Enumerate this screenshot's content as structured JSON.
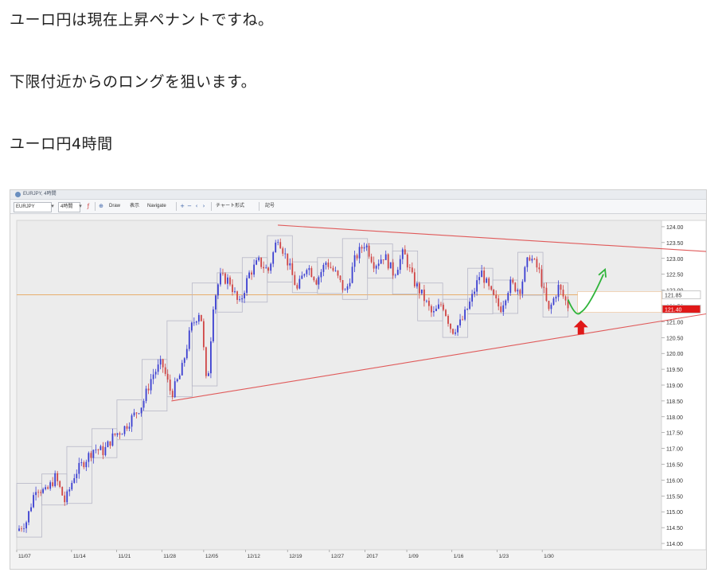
{
  "text": {
    "line1": "ユーロ円は現在上昇ペナントですね。",
    "line2": "下限付近からのロングを狙います。",
    "line3": "ユーロ円4時間"
  },
  "window": {
    "title": "EURJPY, 4時間"
  },
  "toolbar": {
    "symbol": "EURJPY",
    "timeframe": "4時間",
    "draw": "Draw",
    "display": "表示",
    "navigate": "Navigate",
    "chart_type": "チャート形式",
    "indicator": "記号"
  },
  "colors": {
    "bull": "#3b3fd1",
    "bear": "#d04545",
    "trendline": "#e05a5a",
    "box": "#b7b7c7",
    "hline": "#e8a55a",
    "arrow_green": "#2fb43a",
    "arrow_red": "#e01818",
    "price_tag_white": "#ffffff",
    "price_tag_red": "#e01818"
  },
  "chart_data": {
    "type": "candlestick",
    "symbol": "EURJPY",
    "timeframe": "4H",
    "x_ticks": [
      "11/07",
      "11/14",
      "11/21",
      "11/28",
      "12/05",
      "12/12",
      "12/19",
      "12/27",
      "2017",
      "1/09",
      "1/16",
      "1/23",
      "1/30"
    ],
    "y_ticks": [
      124.0,
      123.5,
      123.0,
      122.5,
      122.0,
      121.5,
      121.0,
      120.5,
      120.0,
      119.5,
      119.0,
      118.5,
      118.0,
      117.5,
      117.0,
      116.5,
      116.0,
      115.5,
      115.0,
      114.5,
      114.0
    ],
    "ylim": [
      113.8,
      124.2
    ],
    "price_tags": [
      {
        "label": "121.85",
        "value": 121.85
      },
      {
        "label": "121.40",
        "value": 121.4
      }
    ],
    "trendlines": {
      "upper": [
        [
          0.405,
          124.05
        ],
        [
          1.125,
          123.15
        ]
      ],
      "lower": [
        [
          0.24,
          118.5
        ],
        [
          1.13,
          121.45
        ]
      ]
    },
    "horizontal_line": 121.85,
    "close_path": [
      [
        0.0,
        114.4
      ],
      [
        0.015,
        114.7
      ],
      [
        0.03,
        115.8
      ],
      [
        0.045,
        115.6
      ],
      [
        0.06,
        116.1
      ],
      [
        0.075,
        115.3
      ],
      [
        0.09,
        116.2
      ],
      [
        0.105,
        116.6
      ],
      [
        0.12,
        117.0
      ],
      [
        0.135,
        116.9
      ],
      [
        0.15,
        117.4
      ],
      [
        0.165,
        117.6
      ],
      [
        0.18,
        118.0
      ],
      [
        0.195,
        118.4
      ],
      [
        0.21,
        119.3
      ],
      [
        0.225,
        119.7
      ],
      [
        0.24,
        118.7
      ],
      [
        0.255,
        119.4
      ],
      [
        0.27,
        120.8
      ],
      [
        0.285,
        121.4
      ],
      [
        0.295,
        118.8
      ],
      [
        0.305,
        121.6
      ],
      [
        0.315,
        122.4
      ],
      [
        0.33,
        122.3
      ],
      [
        0.345,
        121.5
      ],
      [
        0.36,
        122.5
      ],
      [
        0.375,
        122.9
      ],
      [
        0.39,
        122.6
      ],
      [
        0.405,
        123.7
      ],
      [
        0.42,
        122.9
      ],
      [
        0.435,
        122.0
      ],
      [
        0.45,
        122.8
      ],
      [
        0.465,
        122.3
      ],
      [
        0.48,
        122.9
      ],
      [
        0.495,
        122.5
      ],
      [
        0.51,
        121.9
      ],
      [
        0.525,
        123.0
      ],
      [
        0.54,
        123.5
      ],
      [
        0.555,
        122.8
      ],
      [
        0.57,
        123.1
      ],
      [
        0.585,
        122.5
      ],
      [
        0.6,
        123.2
      ],
      [
        0.615,
        122.3
      ],
      [
        0.63,
        121.8
      ],
      [
        0.645,
        121.2
      ],
      [
        0.66,
        121.6
      ],
      [
        0.675,
        120.7
      ],
      [
        0.69,
        121.0
      ],
      [
        0.705,
        121.7
      ],
      [
        0.72,
        122.6
      ],
      [
        0.735,
        121.9
      ],
      [
        0.75,
        121.4
      ],
      [
        0.765,
        122.2
      ],
      [
        0.78,
        122.0
      ],
      [
        0.795,
        123.1
      ],
      [
        0.81,
        122.6
      ],
      [
        0.825,
        121.3
      ],
      [
        0.84,
        122.1
      ],
      [
        0.855,
        121.5
      ]
    ],
    "projection": {
      "down_to": 121.3,
      "up_to": 122.5
    }
  }
}
